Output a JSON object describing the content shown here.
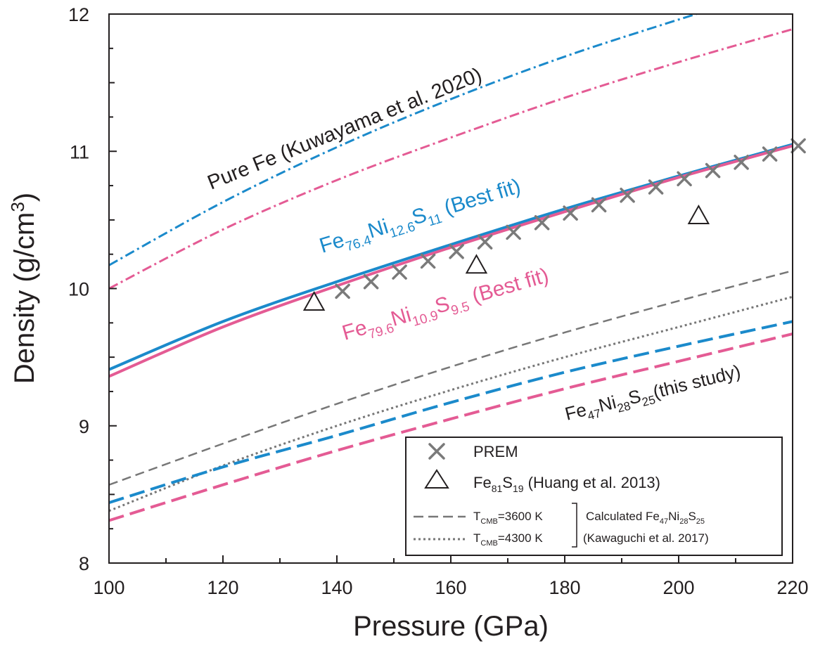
{
  "chart_data": {
    "type": "line",
    "xlabel": "Pressure (GPa)",
    "ylabel_parts": {
      "main": "Density (g/cm",
      "sup": "3",
      "end": ")"
    },
    "xlim": [
      100,
      220
    ],
    "ylim": [
      8,
      12
    ],
    "x_ticks": [
      100,
      120,
      140,
      160,
      180,
      200,
      220
    ],
    "y_ticks": [
      8,
      9,
      10,
      11,
      12
    ],
    "grid": false,
    "colors": {
      "blue": "#1b8acb",
      "pink": "#e45b94",
      "gray": "#777777",
      "black": "#231f20"
    },
    "series": [
      {
        "key": "pure_fe_blue",
        "color": "#1b8acb",
        "dash": "dashdot",
        "x": [
          100,
          120,
          140,
          160,
          180,
          200,
          220
        ],
        "y": [
          10.17,
          10.63,
          11.03,
          11.38,
          11.69,
          11.96,
          12.22
        ]
      },
      {
        "key": "pure_fe_pink",
        "color": "#e45b94",
        "dash": "dashdot",
        "x": [
          100,
          120,
          140,
          160,
          180,
          200,
          220
        ],
        "y": [
          10.0,
          10.43,
          10.79,
          11.1,
          11.39,
          11.65,
          11.89
        ]
      },
      {
        "key": "best_fit_blue",
        "color": "#1b8acb",
        "dash": "solid",
        "x": [
          100,
          120,
          140,
          160,
          180,
          200,
          220
        ],
        "y": [
          9.41,
          9.76,
          10.05,
          10.32,
          10.58,
          10.82,
          11.05
        ]
      },
      {
        "key": "best_fit_pink",
        "color": "#e45b94",
        "dash": "solid",
        "x": [
          100,
          120,
          140,
          160,
          180,
          200,
          220
        ],
        "y": [
          9.36,
          9.72,
          10.02,
          10.3,
          10.56,
          10.81,
          11.04
        ]
      },
      {
        "key": "kawaguchi_3600",
        "color": "#777777",
        "dash": "dashed",
        "x": [
          100,
          120,
          140,
          160,
          180,
          200,
          220
        ],
        "y": [
          8.57,
          8.87,
          9.16,
          9.43,
          9.68,
          9.91,
          10.13
        ]
      },
      {
        "key": "kawaguchi_4300",
        "color": "#777777",
        "dash": "dotted",
        "x": [
          100,
          120,
          140,
          160,
          180,
          200,
          220
        ],
        "y": [
          8.38,
          8.71,
          9.0,
          9.26,
          9.5,
          9.72,
          9.94
        ]
      },
      {
        "key": "this_study_blue",
        "color": "#1b8acb",
        "dash": "longdash",
        "x": [
          100,
          120,
          140,
          160,
          180,
          200,
          220
        ],
        "y": [
          8.44,
          8.7,
          8.93,
          9.17,
          9.39,
          9.58,
          9.76
        ]
      },
      {
        "key": "this_study_pink",
        "color": "#e45b94",
        "dash": "longdash",
        "x": [
          100,
          120,
          140,
          160,
          180,
          200,
          220
        ],
        "y": [
          8.31,
          8.57,
          8.82,
          9.05,
          9.27,
          9.47,
          9.67
        ]
      }
    ],
    "prem": {
      "x": [
        141,
        146,
        151,
        156,
        161,
        166,
        171,
        176,
        181,
        186,
        191,
        196,
        201,
        206,
        211,
        216,
        221
      ],
      "y": [
        9.98,
        10.05,
        10.12,
        10.2,
        10.27,
        10.34,
        10.41,
        10.48,
        10.55,
        10.61,
        10.68,
        10.74,
        10.8,
        10.86,
        10.92,
        10.98,
        11.04
      ]
    },
    "huang": {
      "x": [
        136,
        164.5,
        203.5
      ],
      "y": [
        9.9,
        10.17,
        10.53
      ]
    },
    "annotations": {
      "pure_fe": "Pure Fe  (Kuwayama et al. 2020)",
      "blue_fit": {
        "a": "Fe",
        "a_sub": "76.4",
        "b": "Ni",
        "b_sub": "12.6",
        "c": "S",
        "c_sub": "11",
        "tail": " (Best fit)"
      },
      "pink_fit": {
        "a": "Fe",
        "a_sub": "79.6",
        "b": "Ni",
        "b_sub": "10.9",
        "c": "S",
        "c_sub": "9.5",
        "tail": " (Best fit)"
      },
      "this_study": {
        "a": "Fe",
        "a_sub": "47",
        "b": "Ni",
        "b_sub": "28",
        "c": "S",
        "c_sub": "25",
        "tail": "(this study)"
      }
    },
    "legend": {
      "placement": "bottom-right",
      "prem": "PREM",
      "huang": {
        "a": "Fe",
        "a_sub": "81",
        "b": "S",
        "b_sub": "19",
        "tail": " (Huang et al. 2013)"
      },
      "t1": {
        "a": "T",
        "a_sub": "CMB",
        "tail": "=3600 K"
      },
      "t2": {
        "a": "T",
        "a_sub": "CMB",
        "tail": "=4300 K"
      },
      "calc": {
        "a": "Calculated Fe",
        "a_sub": "47",
        "b": "Ni",
        "b_sub": "28",
        "c": "S",
        "c_sub": "25"
      },
      "kawaguchi": "(Kawaguchi et al. 2017)"
    }
  }
}
